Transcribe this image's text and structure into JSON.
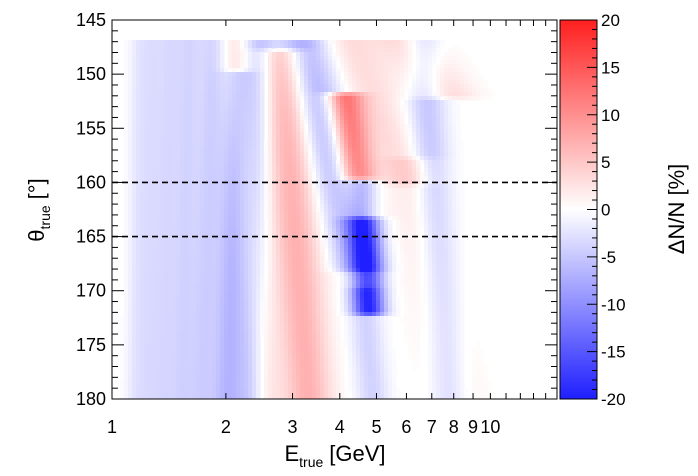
{
  "chart_data": {
    "type": "heatmap",
    "xlabel": {
      "main": "E",
      "sub": "true",
      "unit": "[GeV]"
    },
    "ylabel": {
      "main": "θ",
      "sub": "true",
      "unit": "[°]"
    },
    "zlabel": "ΔN/N [%]",
    "x_scale": "log",
    "xlim": [
      1,
      15
    ],
    "ylim": [
      145,
      180
    ],
    "y_inverted": true,
    "x_tick_labels": [
      {
        "value": 1,
        "label": "1"
      },
      {
        "value": 2,
        "label": "2"
      },
      {
        "value": 3,
        "label": "3"
      },
      {
        "value": 4,
        "label": "4"
      },
      {
        "value": 5,
        "label": "5"
      },
      {
        "value": 6,
        "label": "6"
      },
      {
        "value": 7,
        "label": "7"
      },
      {
        "value": 8,
        "label": "8"
      },
      {
        "value": 9,
        "label": "9"
      },
      {
        "value": 10,
        "label": "10"
      }
    ],
    "y_tick_labels": [
      145,
      150,
      155,
      160,
      165,
      170,
      175,
      180
    ],
    "z_range": [
      -20,
      20
    ],
    "z_tick_labels": [
      20,
      15,
      10,
      5,
      0,
      -5,
      -10,
      -15,
      -20
    ],
    "colormap": {
      "low": "#1f1fff",
      "mid": "#ffffff",
      "high": "#ff1f1f"
    },
    "reference_lines_theta": [
      160,
      165
    ],
    "features": [
      {
        "theta_start": 147,
        "theta_end": 180,
        "e_at_start": 1.18,
        "e_at_end": 1.15,
        "amp": -2.0,
        "width": 0.018
      },
      {
        "theta_start": 147,
        "theta_end": 180,
        "e_at_start": 1.28,
        "e_at_end": 1.24,
        "amp": -2.5,
        "width": 0.02
      },
      {
        "theta_start": 147,
        "theta_end": 180,
        "e_at_start": 1.42,
        "e_at_end": 1.36,
        "amp": -3.0,
        "width": 0.022
      },
      {
        "theta_start": 147,
        "theta_end": 180,
        "e_at_start": 1.6,
        "e_at_end": 1.52,
        "amp": -3.5,
        "width": 0.024
      },
      {
        "theta_start": 147,
        "theta_end": 180,
        "e_at_start": 1.85,
        "e_at_end": 1.72,
        "amp": -4.0,
        "width": 0.026
      },
      {
        "theta_start": 150,
        "theta_end": 180,
        "e_at_start": 2.15,
        "e_at_end": 2.0,
        "amp": -6.0,
        "width": 0.028
      },
      {
        "theta_start": 147,
        "theta_end": 180,
        "e_at_start": 2.45,
        "e_at_end": 2.3,
        "amp": -5.0,
        "width": 0.03
      },
      {
        "theta_start": 147,
        "theta_end": 180,
        "e_at_start": 2.1,
        "e_at_end": 2.55,
        "amp": 2.5,
        "width": 0.03
      },
      {
        "theta_start": 148,
        "theta_end": 180,
        "e_at_start": 2.8,
        "e_at_end": 3.3,
        "amp": 7.0,
        "width": 0.045
      },
      {
        "theta_start": 147,
        "theta_end": 168,
        "e_at_start": 3.2,
        "e_at_end": 4.5,
        "amp": -7.0,
        "width": 0.045
      },
      {
        "theta_start": 152,
        "theta_end": 163,
        "e_at_start": 4.1,
        "e_at_end": 4.6,
        "amp": 13.0,
        "width": 0.035
      },
      {
        "theta_start": 160,
        "theta_end": 172,
        "e_at_start": 4.55,
        "e_at_end": 4.8,
        "amp": -16.0,
        "width": 0.03
      },
      {
        "theta_start": 147,
        "theta_end": 160,
        "e_at_start": 4.3,
        "e_at_end": 6.0,
        "amp": 3.0,
        "width": 0.05
      },
      {
        "theta_start": 147,
        "theta_end": 180,
        "e_at_start": 6.6,
        "e_at_end": 7.8,
        "amp": -5.0,
        "width": 0.035
      },
      {
        "theta_start": 147,
        "theta_end": 152,
        "e_at_start": 6.0,
        "e_at_end": 7.5,
        "amp": 4.0,
        "width": 0.06
      },
      {
        "theta_start": 158,
        "theta_end": 180,
        "e_at_start": 6.2,
        "e_at_end": 8.0,
        "amp": 2.5,
        "width": 0.05
      },
      {
        "theta_start": 170,
        "theta_end": 180,
        "e_at_start": 4.6,
        "e_at_end": 4.9,
        "amp": -4.0,
        "width": 0.03
      }
    ]
  }
}
